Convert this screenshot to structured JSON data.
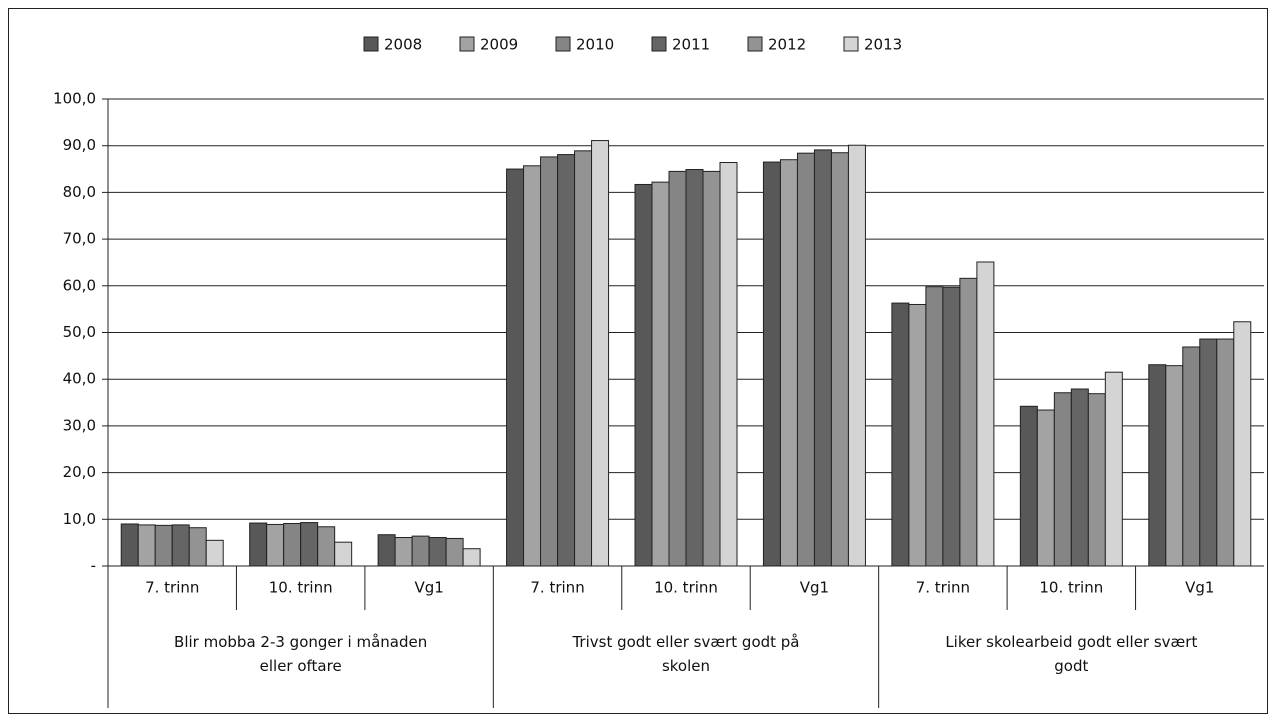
{
  "chart_data": {
    "type": "bar",
    "categories": [
      "7. trinn",
      "10. trinn",
      "Vg1",
      "7. trinn",
      "10. trinn",
      "Vg1",
      "7. trinn",
      "10. trinn",
      "Vg1"
    ],
    "groups": [
      "Blir mobba 2-3 gonger i månaden eller oftare",
      "Trivst godt eller svært godt på skolen",
      "Liker skolearbeid godt eller svært godt"
    ],
    "series": [
      {
        "name": "2008",
        "color": "#585858",
        "values": [
          9.0,
          9.2,
          6.7,
          85.0,
          81.7,
          86.5,
          56.3,
          34.2,
          43.1
        ]
      },
      {
        "name": "2009",
        "color": "#a3a3a3",
        "values": [
          8.8,
          8.9,
          6.1,
          85.7,
          82.2,
          87.0,
          56.0,
          33.4,
          42.9
        ]
      },
      {
        "name": "2010",
        "color": "#858585",
        "values": [
          8.7,
          9.1,
          6.4,
          87.6,
          84.5,
          88.4,
          59.8,
          37.1,
          46.9
        ]
      },
      {
        "name": "2011",
        "color": "#656565",
        "values": [
          8.8,
          9.3,
          6.1,
          88.1,
          84.9,
          89.1,
          59.7,
          37.9,
          48.6
        ]
      },
      {
        "name": "2012",
        "color": "#939393",
        "values": [
          8.2,
          8.4,
          5.9,
          88.9,
          84.5,
          88.5,
          61.6,
          36.9,
          48.6
        ]
      },
      {
        "name": "2013",
        "color": "#d4d4d4",
        "values": [
          5.5,
          5.1,
          3.7,
          91.1,
          86.4,
          90.1,
          65.1,
          41.5,
          52.3
        ]
      }
    ],
    "ylim": [
      0,
      100
    ],
    "yticks": [
      {
        "value": 0,
        "label": "-"
      },
      {
        "value": 10,
        "label": "10,0"
      },
      {
        "value": 20,
        "label": "20,0"
      },
      {
        "value": 30,
        "label": "30,0"
      },
      {
        "value": 40,
        "label": "40,0"
      },
      {
        "value": 50,
        "label": "50,0"
      },
      {
        "value": 60,
        "label": "60,0"
      },
      {
        "value": 70,
        "label": "70,0"
      },
      {
        "value": 80,
        "label": "80,0"
      },
      {
        "value": 90,
        "label": "90,0"
      },
      {
        "value": 100,
        "label": "100,0"
      }
    ],
    "grid": true,
    "legend": "top"
  }
}
